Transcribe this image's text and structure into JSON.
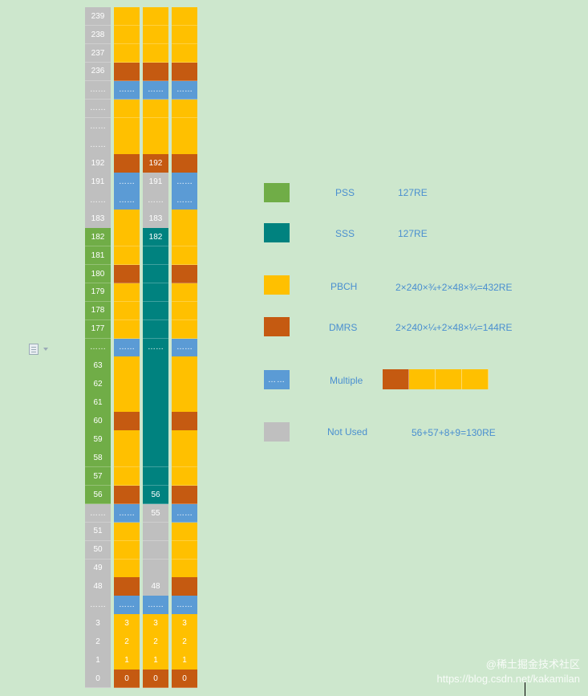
{
  "colors": {
    "pss": "#70ad47",
    "sss": "#00827f",
    "pbch": "#ffc000",
    "dmrs": "#c55a11",
    "multiple": "#5b9bd5",
    "not_used": "#bfbfbf",
    "legend_text": "#4a8fd0"
  },
  "grid": {
    "rows": [
      {
        "label": "239",
        "c0": "not_used",
        "c1": "pbch",
        "c2": "pbch",
        "c3": "pbch",
        "t2": ""
      },
      {
        "label": "238",
        "c0": "not_used",
        "c1": "pbch",
        "c2": "pbch",
        "c3": "pbch",
        "t2": ""
      },
      {
        "label": "237",
        "c0": "not_used",
        "c1": "pbch",
        "c2": "pbch",
        "c3": "pbch",
        "t2": ""
      },
      {
        "label": "236",
        "c0": "not_used",
        "c1": "dmrs",
        "c2": "dmrs",
        "c3": "dmrs",
        "t2": ""
      },
      {
        "label": "……",
        "c0": "not_used",
        "c1": "multiple",
        "c2": "multiple",
        "c3": "multiple",
        "t2": "……"
      },
      {
        "label": "……",
        "c0": "not_used",
        "c1": "pbch",
        "c2": "pbch",
        "c3": "pbch",
        "t2": ""
      },
      {
        "label": "……",
        "c0": "not_used",
        "c1": "pbch",
        "c2": "pbch",
        "c3": "pbch",
        "t2": ""
      },
      {
        "label": "……",
        "c0": "not_used",
        "c1": "pbch",
        "c2": "pbch",
        "c3": "pbch",
        "t2": ""
      },
      {
        "label": "192",
        "c0": "not_used",
        "c1": "dmrs",
        "c2": "dmrs",
        "c3": "dmrs",
        "t2": "192"
      },
      {
        "label": "191",
        "c0": "not_used",
        "c1": "multiple",
        "c2": "not_used",
        "c3": "multiple",
        "t2": "191"
      },
      {
        "label": "……",
        "c0": "not_used",
        "c1": "multiple",
        "c2": "not_used",
        "c3": "multiple",
        "t2": "……"
      },
      {
        "label": "183",
        "c0": "not_used",
        "c1": "pbch",
        "c2": "not_used",
        "c3": "pbch",
        "t2": "183"
      },
      {
        "label": "182",
        "c0": "pss",
        "c1": "pbch",
        "c2": "sss",
        "c3": "pbch",
        "t2": "182"
      },
      {
        "label": "181",
        "c0": "pss",
        "c1": "pbch",
        "c2": "sss",
        "c3": "pbch",
        "t2": ""
      },
      {
        "label": "180",
        "c0": "pss",
        "c1": "dmrs",
        "c2": "sss",
        "c3": "dmrs",
        "t2": ""
      },
      {
        "label": "179",
        "c0": "pss",
        "c1": "pbch",
        "c2": "sss",
        "c3": "pbch",
        "t2": ""
      },
      {
        "label": "178",
        "c0": "pss",
        "c1": "pbch",
        "c2": "sss",
        "c3": "pbch",
        "t2": ""
      },
      {
        "label": "177",
        "c0": "pss",
        "c1": "pbch",
        "c2": "sss",
        "c3": "pbch",
        "t2": ""
      },
      {
        "label": "……",
        "c0": "pss",
        "c1": "multiple",
        "c2": "sss",
        "c3": "multiple",
        "t2": "……"
      },
      {
        "label": "63",
        "c0": "pss",
        "c1": "pbch",
        "c2": "sss",
        "c3": "pbch",
        "t2": ""
      },
      {
        "label": "62",
        "c0": "pss",
        "c1": "pbch",
        "c2": "sss",
        "c3": "pbch",
        "t2": ""
      },
      {
        "label": "61",
        "c0": "pss",
        "c1": "pbch",
        "c2": "sss",
        "c3": "pbch",
        "t2": ""
      },
      {
        "label": "60",
        "c0": "pss",
        "c1": "dmrs",
        "c2": "sss",
        "c3": "dmrs",
        "t2": ""
      },
      {
        "label": "59",
        "c0": "pss",
        "c1": "pbch",
        "c2": "sss",
        "c3": "pbch",
        "t2": ""
      },
      {
        "label": "58",
        "c0": "pss",
        "c1": "pbch",
        "c2": "sss",
        "c3": "pbch",
        "t2": ""
      },
      {
        "label": "57",
        "c0": "pss",
        "c1": "pbch",
        "c2": "sss",
        "c3": "pbch",
        "t2": ""
      },
      {
        "label": "56",
        "c0": "pss",
        "c1": "dmrs",
        "c2": "sss",
        "c3": "dmrs",
        "t2": "56"
      },
      {
        "label": "……",
        "c0": "not_used",
        "c1": "multiple",
        "c2": "not_used",
        "c3": "multiple",
        "t2": "55"
      },
      {
        "label": "51",
        "c0": "not_used",
        "c1": "pbch",
        "c2": "not_used",
        "c3": "pbch",
        "t2": ""
      },
      {
        "label": "50",
        "c0": "not_used",
        "c1": "pbch",
        "c2": "not_used",
        "c3": "pbch",
        "t2": ""
      },
      {
        "label": "49",
        "c0": "not_used",
        "c1": "pbch",
        "c2": "not_used",
        "c3": "pbch",
        "t2": ""
      },
      {
        "label": "48",
        "c0": "not_used",
        "c1": "dmrs",
        "c2": "not_used",
        "c3": "dmrs",
        "t2": "48"
      },
      {
        "label": "……",
        "c0": "not_used",
        "c1": "multiple",
        "c2": "multiple",
        "c3": "multiple",
        "t2": "……"
      },
      {
        "label": "3",
        "c0": "not_used",
        "c1": "pbch",
        "c2": "pbch",
        "c3": "pbch",
        "t2": "3"
      },
      {
        "label": "2",
        "c0": "not_used",
        "c1": "pbch",
        "c2": "pbch",
        "c3": "pbch",
        "t2": "2"
      },
      {
        "label": "1",
        "c0": "not_used",
        "c1": "pbch",
        "c2": "pbch",
        "c3": "pbch",
        "t2": "1"
      },
      {
        "label": "0",
        "c0": "not_used",
        "c1": "dmrs",
        "c2": "dmrs",
        "c3": "dmrs",
        "t2": "0"
      }
    ],
    "col1_labels": {
      "3": "3",
      "2": "2",
      "1": "1",
      "0": "0"
    },
    "col3_labels": {
      "3": "3",
      "2": "2",
      "1": "1",
      "0": "0"
    }
  },
  "legend": {
    "pss": {
      "label": "PSS",
      "value": "127RE"
    },
    "sss": {
      "label": "SSS",
      "value": "127RE"
    },
    "pbch": {
      "label": "PBCH",
      "value": "2×240×¾+2×48×¾=432RE"
    },
    "dmrs": {
      "label": "DMRS",
      "value": "2×240×¼+2×48×¼=144RE"
    },
    "multiple": {
      "label": "Multiple",
      "dots": "……",
      "strip": [
        "dmrs",
        "pbch",
        "pbch",
        "pbch"
      ]
    },
    "not_used": {
      "label": "Not Used",
      "value": "56+57+8+9=130RE"
    }
  },
  "watermark": {
    "line1": "@稀土掘金技术社区",
    "line2": "https://blog.csdn.net/kakamilan"
  }
}
